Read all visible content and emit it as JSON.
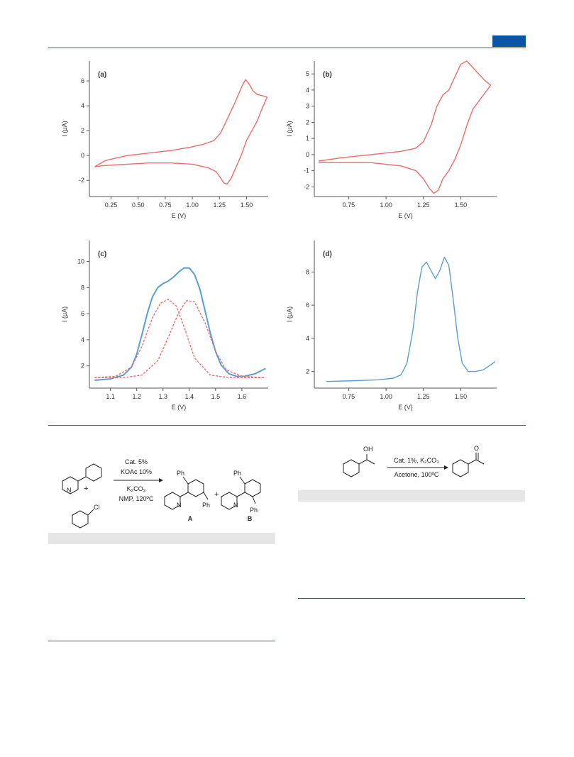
{
  "chart_data": [
    {
      "id": "a",
      "type": "line",
      "panel_label": "(a)",
      "xlabel": "E (V)",
      "ylabel": "I (μA)",
      "xlim": [
        0.05,
        1.7
      ],
      "ylim": [
        -3.3,
        7.6
      ],
      "xticks": [
        0.25,
        0.5,
        0.75,
        1.0,
        1.25,
        1.5
      ],
      "xtick_labels": [
        "0.25",
        "0.50",
        "0.75",
        "1.00",
        "1.25",
        "1.50"
      ],
      "yticks": [
        -2,
        0,
        2,
        4,
        6
      ],
      "ytick_labels": [
        "-2",
        "0",
        "2",
        "4",
        "6"
      ],
      "color": "#ef6b6b",
      "series": [
        {
          "x": [
            0.1,
            0.2,
            0.4,
            0.6,
            0.8,
            1.0,
            1.1,
            1.2,
            1.26,
            1.32,
            1.38,
            1.42,
            1.46,
            1.49,
            1.52,
            1.56,
            1.6,
            1.65,
            1.69
          ],
          "y": [
            -0.9,
            -0.4,
            0.0,
            0.2,
            0.4,
            0.7,
            0.9,
            1.2,
            1.8,
            2.9,
            4.0,
            4.8,
            5.6,
            6.1,
            5.8,
            5.2,
            4.9,
            4.8,
            4.7
          ]
        },
        {
          "x": [
            1.69,
            1.64,
            1.6,
            1.55,
            1.5,
            1.45,
            1.4,
            1.36,
            1.32,
            1.29,
            1.26,
            1.22,
            1.15,
            1.0,
            0.8,
            0.6,
            0.4,
            0.2,
            0.1
          ],
          "y": [
            4.7,
            3.7,
            2.8,
            2.0,
            1.2,
            0.0,
            -1.0,
            -1.8,
            -2.3,
            -2.2,
            -1.8,
            -1.3,
            -1.0,
            -0.7,
            -0.6,
            -0.6,
            -0.7,
            -0.8,
            -0.9
          ]
        }
      ]
    },
    {
      "id": "b",
      "type": "line",
      "panel_label": "(b)",
      "xlabel": "E (V)",
      "ylabel": "I (μA)",
      "xlim": [
        0.52,
        1.74
      ],
      "ylim": [
        -2.6,
        5.8
      ],
      "xticks": [
        0.75,
        1.0,
        1.25,
        1.5
      ],
      "xtick_labels": [
        "0.75",
        "1.00",
        "1.25",
        "1.50"
      ],
      "yticks": [
        -2,
        -1,
        0,
        1,
        2,
        3,
        4,
        5
      ],
      "ytick_labels": [
        "-2",
        "-1",
        "0",
        "1",
        "2",
        "3",
        "4",
        "5"
      ],
      "color": "#ef6b6b",
      "series": [
        {
          "x": [
            0.55,
            0.7,
            0.9,
            1.1,
            1.2,
            1.25,
            1.3,
            1.34,
            1.38,
            1.42,
            1.46,
            1.5,
            1.54,
            1.58,
            1.62,
            1.66,
            1.7
          ],
          "y": [
            -0.4,
            -0.2,
            0.0,
            0.2,
            0.4,
            0.8,
            1.8,
            3.0,
            3.7,
            4.0,
            4.8,
            5.6,
            5.8,
            5.4,
            5.0,
            4.6,
            4.3
          ]
        },
        {
          "x": [
            1.7,
            1.66,
            1.62,
            1.58,
            1.54,
            1.5,
            1.46,
            1.42,
            1.38,
            1.35,
            1.32,
            1.29,
            1.25,
            1.2,
            1.1,
            0.9,
            0.7,
            0.55
          ],
          "y": [
            4.3,
            3.8,
            3.3,
            2.8,
            1.8,
            0.6,
            -0.3,
            -1.0,
            -1.5,
            -2.2,
            -2.4,
            -2.1,
            -1.5,
            -1.0,
            -0.7,
            -0.5,
            -0.5,
            -0.5
          ]
        }
      ]
    },
    {
      "id": "c",
      "type": "line",
      "panel_label": "(c)",
      "xlabel": "E (V)",
      "ylabel": "I (μA)",
      "xlim": [
        1.02,
        1.7
      ],
      "ylim": [
        0.3,
        11.6
      ],
      "xticks": [
        1.1,
        1.2,
        1.3,
        1.4,
        1.5,
        1.6
      ],
      "xtick_labels": [
        "1.1",
        "1.2",
        "1.3",
        "1.4",
        "1.5",
        "1.6"
      ],
      "yticks": [
        2,
        4,
        6,
        8,
        10
      ],
      "ytick_labels": [
        "2",
        "4",
        "6",
        "8",
        "10"
      ],
      "series": [
        {
          "style": "solid",
          "color": "#5a9fd4",
          "x": [
            1.04,
            1.1,
            1.15,
            1.18,
            1.2,
            1.22,
            1.24,
            1.26,
            1.28,
            1.3,
            1.32,
            1.34,
            1.36,
            1.38,
            1.4,
            1.42,
            1.44,
            1.46,
            1.48,
            1.5,
            1.52,
            1.55,
            1.58,
            1.61,
            1.65,
            1.69
          ],
          "y": [
            0.9,
            1.0,
            1.3,
            1.9,
            2.9,
            4.4,
            6.0,
            7.3,
            8.0,
            8.3,
            8.5,
            8.8,
            9.2,
            9.5,
            9.5,
            9.0,
            7.9,
            6.2,
            4.5,
            3.1,
            2.1,
            1.4,
            1.2,
            1.2,
            1.4,
            1.8
          ]
        },
        {
          "style": "dashed",
          "color": "#ef6b6b",
          "x": [
            1.04,
            1.12,
            1.18,
            1.22,
            1.26,
            1.29,
            1.32,
            1.35,
            1.38,
            1.42,
            1.48,
            1.55,
            1.69
          ],
          "y": [
            1.1,
            1.2,
            1.9,
            3.5,
            5.7,
            6.8,
            7.1,
            6.6,
            5.0,
            2.6,
            1.3,
            1.1,
            1.1
          ]
        },
        {
          "style": "dashed",
          "color": "#ef6b6b",
          "x": [
            1.04,
            1.15,
            1.22,
            1.28,
            1.32,
            1.36,
            1.39,
            1.42,
            1.46,
            1.5,
            1.54,
            1.6,
            1.69
          ],
          "y": [
            1.1,
            1.1,
            1.3,
            2.4,
            4.2,
            6.1,
            7.0,
            6.9,
            5.3,
            3.1,
            1.7,
            1.2,
            1.1
          ]
        }
      ]
    },
    {
      "id": "d",
      "type": "line",
      "panel_label": "(d)",
      "xlabel": "E (V)",
      "ylabel": "I (μA)",
      "xlim": [
        0.52,
        1.74
      ],
      "ylim": [
        1.0,
        9.9
      ],
      "xticks": [
        0.75,
        1.0,
        1.25,
        1.5
      ],
      "xtick_labels": [
        "0.75",
        "1.00",
        "1.25",
        "1.50"
      ],
      "yticks": [
        2,
        4,
        6,
        8
      ],
      "ytick_labels": [
        "2",
        "4",
        "6",
        "8"
      ],
      "color": "#5a9fd4",
      "series": [
        {
          "x": [
            0.6,
            0.8,
            0.95,
            1.05,
            1.1,
            1.14,
            1.18,
            1.21,
            1.24,
            1.27,
            1.3,
            1.33,
            1.36,
            1.39,
            1.42,
            1.45,
            1.48,
            1.51,
            1.55,
            1.6,
            1.65,
            1.7,
            1.73
          ],
          "y": [
            1.4,
            1.45,
            1.5,
            1.6,
            1.8,
            2.5,
            4.5,
            6.8,
            8.3,
            8.6,
            8.1,
            7.6,
            8.1,
            8.9,
            8.4,
            6.3,
            4.0,
            2.5,
            2.0,
            2.0,
            2.1,
            2.4,
            2.6
          ]
        }
      ]
    }
  ],
  "schemes": {
    "left": {
      "conditions": [
        "Cat. 5%",
        "KOAc 10%",
        "K₂CO₃",
        "NMP, 120ºC"
      ],
      "plus": "+",
      "reagent_sub": "Cl",
      "product_a_label": "A",
      "product_b_label": "B",
      "ph": "Ph",
      "n": "N"
    },
    "right": {
      "condition_top": "Cat. 1%, K₂CO₃",
      "condition_bottom": "Acetone, 100ºC",
      "oh": "OH",
      "o": "O"
    }
  },
  "colors": {
    "rule": "#1f5fa8",
    "tab": "#0b55a6",
    "caption_bar": "#e6e6e6"
  }
}
